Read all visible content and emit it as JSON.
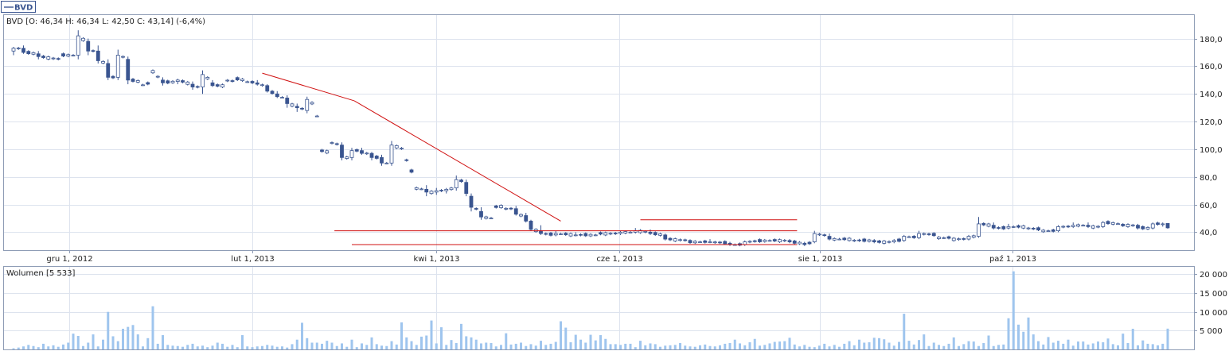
{
  "legend_tab": {
    "label": "BVD"
  },
  "colors": {
    "up_candle": "#ffffff",
    "down_candle": "#3a5590",
    "candle_edge": "#3a5590",
    "trend_line": "#d01010",
    "volume_bar": "#9fc5ee",
    "grid": "#dde3ee",
    "frame": "#8e9cb5",
    "text": "#222222"
  },
  "chart_data": [
    {
      "type": "candlestick",
      "info_label": "BVD [O: 46,34  H: 46,34  L: 42,50  C: 43,14] (-6,4%)",
      "x_tick_labels": [
        "gru 1, 2012",
        "lut 1, 2013",
        "kwi 1, 2013",
        "cze 1, 2013",
        "sie 1, 2013",
        "paź 1, 2013"
      ],
      "x_tick_positions": [
        10,
        37,
        64,
        91,
        118,
        145
      ],
      "y_ticks": [
        40,
        60,
        80,
        100,
        120,
        140,
        160,
        180
      ],
      "y_tick_labels": [
        "40,0",
        "60,0",
        "80,0",
        "100,0",
        "120,0",
        "140,0",
        "160,0",
        "180,0"
      ],
      "ylim": [
        27,
        197
      ],
      "x_range": [
        -0.5,
        169.5
      ],
      "grid": true,
      "ohlc_anchors": [
        [
          0,
          171,
          174,
          168,
          173
        ],
        [
          2,
          173,
          175,
          169,
          170
        ],
        [
          5,
          169,
          171,
          165,
          167
        ],
        [
          9,
          165,
          170,
          162,
          168
        ],
        [
          12,
          168,
          186,
          165,
          182
        ],
        [
          14,
          178,
          180,
          168,
          171
        ],
        [
          16,
          171,
          175,
          162,
          164
        ],
        [
          18,
          162,
          165,
          150,
          152
        ],
        [
          20,
          152,
          172,
          150,
          168
        ],
        [
          22,
          165,
          167,
          147,
          150
        ],
        [
          24,
          149,
          153,
          140,
          146
        ],
        [
          26,
          148,
          160,
          146,
          158
        ],
        [
          28,
          150,
          152,
          146,
          148
        ],
        [
          31,
          149,
          151,
          147,
          150
        ],
        [
          34,
          147,
          149,
          143,
          145
        ],
        [
          36,
          145,
          157,
          140,
          154
        ],
        [
          38,
          148,
          150,
          145,
          146
        ],
        [
          40,
          146,
          152,
          145,
          150
        ],
        [
          42,
          149,
          154,
          147,
          151
        ],
        [
          44,
          150,
          153,
          147,
          149
        ],
        [
          46,
          148,
          150,
          146,
          147
        ],
        [
          48,
          146,
          147,
          141,
          142
        ],
        [
          50,
          140,
          142,
          137,
          138
        ],
        [
          52,
          137,
          139,
          130,
          133
        ],
        [
          54,
          131,
          133,
          127,
          130
        ],
        [
          56,
          128,
          138,
          126,
          136
        ],
        [
          57,
          132,
          134,
          120,
          124
        ],
        [
          58,
          124,
          126,
          97,
          99
        ],
        [
          60,
          98,
          108,
          96,
          105
        ],
        [
          62,
          103,
          105,
          92,
          94
        ],
        [
          64,
          94,
          101,
          92,
          99
        ],
        [
          66,
          99,
          101,
          96,
          97
        ],
        [
          68,
          97,
          98,
          92,
          94
        ],
        [
          70,
          94,
          96,
          88,
          90
        ],
        [
          72,
          90,
          106,
          88,
          103
        ],
        [
          74,
          100,
          102,
          90,
          92
        ],
        [
          75,
          92,
          94,
          82,
          84
        ],
        [
          76,
          84,
          86,
          70,
          72
        ],
        [
          78,
          71,
          74,
          66,
          69
        ],
        [
          80,
          69,
          72,
          67,
          70
        ],
        [
          82,
          70,
          72,
          68,
          71
        ],
        [
          84,
          72,
          81,
          70,
          78
        ],
        [
          86,
          76,
          78,
          66,
          68
        ],
        [
          87,
          66,
          68,
          55,
          58
        ],
        [
          89,
          55,
          58,
          49,
          51
        ],
        [
          91,
          50,
          60,
          49,
          58
        ],
        [
          93,
          59,
          60,
          56,
          57
        ],
        [
          95,
          57,
          59,
          52,
          53
        ],
        [
          97,
          52,
          54,
          47,
          48
        ],
        [
          98,
          48,
          49,
          41,
          42
        ],
        [
          100,
          41,
          45,
          38,
          39
        ],
        [
          103,
          38,
          41,
          37,
          39
        ],
        [
          107,
          38,
          40,
          37,
          38
        ],
        [
          111,
          38,
          40,
          37,
          39
        ],
        [
          115,
          39,
          41,
          38,
          40
        ],
        [
          118,
          40,
          43,
          39,
          41
        ],
        [
          121,
          40,
          42,
          38,
          39
        ],
        [
          124,
          38,
          39,
          34,
          35
        ],
        [
          128,
          34,
          36,
          32,
          33
        ],
        [
          132,
          33,
          35,
          32,
          33
        ],
        [
          136,
          32,
          33,
          30,
          31
        ],
        [
          139,
          31,
          34,
          30,
          33
        ],
        [
          143,
          34,
          36,
          33,
          34
        ],
        [
          147,
          34,
          35,
          32,
          33
        ],
        [
          150,
          32,
          33,
          30,
          31
        ],
        [
          152,
          33,
          41,
          32,
          39
        ],
        [
          155,
          37,
          39,
          34,
          35
        ],
        [
          159,
          35,
          36,
          33,
          34
        ],
        [
          163,
          34,
          35,
          32,
          33
        ],
        [
          167,
          33,
          35,
          32,
          34
        ],
        [
          169,
          34,
          38,
          33,
          37
        ],
        [
          172,
          36,
          41,
          35,
          39
        ],
        [
          175,
          38,
          39,
          35,
          36
        ],
        [
          178,
          36,
          37,
          34,
          35
        ],
        [
          181,
          35,
          38,
          34,
          37
        ],
        [
          183,
          37,
          51,
          36,
          46
        ],
        [
          186,
          45,
          47,
          42,
          43
        ],
        [
          189,
          43,
          46,
          42,
          44
        ],
        [
          192,
          44,
          47,
          42,
          43
        ],
        [
          195,
          42,
          43,
          40,
          41
        ],
        [
          198,
          41,
          45,
          40,
          44
        ],
        [
          201,
          44,
          47,
          43,
          45
        ],
        [
          204,
          45,
          47,
          43,
          44
        ],
        [
          207,
          44,
          48,
          43,
          47
        ],
        [
          210,
          46,
          47,
          44,
          45
        ],
        [
          213,
          45,
          46,
          42,
          43
        ],
        [
          216,
          43,
          47,
          42,
          46
        ],
        [
          218,
          46,
          47,
          44,
          46
        ],
        [
          219,
          46.34,
          46.34,
          42.5,
          43.14
        ]
      ],
      "anchor_x_scale": 0.77,
      "trend_lines": [
        {
          "x1": 100,
          "y1": 155,
          "x2": 137,
          "y2": 135
        },
        {
          "x1": 137,
          "y1": 135,
          "x2": 220,
          "y2": 48
        },
        {
          "x1": 129,
          "y1": 41,
          "x2": 315,
          "y2": 41
        },
        {
          "x1": 136,
          "y1": 31,
          "x2": 315,
          "y2": 31
        },
        {
          "x1": 252,
          "y1": 49,
          "x2": 315,
          "y2": 49
        }
      ],
      "trend_x_scale": 0.5
    },
    {
      "type": "bar",
      "info_label": "Wolumen [5 533]",
      "y_ticks": [
        5000,
        10000,
        15000,
        20000
      ],
      "y_tick_labels": [
        "5 000",
        "10 000",
        "15 000",
        "20 000"
      ],
      "ylim": [
        0,
        22000
      ],
      "volumes": [
        300,
        500,
        800,
        1200,
        900,
        600,
        1500,
        800,
        1100,
        700,
        1300,
        1800,
        4200,
        3600,
        900,
        1800,
        4000,
        800,
        2600,
        10000,
        3500,
        2200,
        5500,
        6000,
        6500,
        4000,
        800,
        3000,
        11500,
        1500,
        3800,
        1200,
        1000,
        900,
        700,
        1200,
        1500,
        800,
        1000,
        600,
        1000,
        1800,
        1500,
        700,
        1200,
        600,
        3800,
        800,
        600,
        800,
        900,
        1200,
        1000,
        700,
        800,
        500,
        1400,
        2600,
        7100,
        3000,
        1800,
        1800,
        1500,
        2300,
        1800,
        900,
        1600,
        700,
        2600,
        600,
        1600,
        1200,
        3200,
        1400,
        1000,
        900,
        2200,
        1300,
        7200,
        3200,
        2200,
        1200,
        3400,
        3700,
        7700,
        1600,
        5900,
        1200,
        2500,
        1700,
        6800,
        3500,
        3200,
        2600,
        1600,
        1800,
        1700,
        800,
        1200,
        4300,
        1300,
        1500,
        1800,
        900,
        1400,
        1000,
        2300,
        1200,
        1500,
        2000,
        7500,
        5800,
        1900,
        3900,
        2600,
        1800,
        3900,
        2400,
        3800,
        2800,
        1400,
        1400,
        1200,
        1500,
        1500,
        600,
        2300,
        1100,
        1600,
        1400,
        700,
        1000,
        1100,
        1200,
        1700,
        1000,
        800,
        700,
        1100,
        1300,
        900,
        800,
        1100,
        1500,
        1700,
        2600,
        1600,
        1100,
        1900,
        2800,
        1000,
        1200,
        1600,
        2000,
        2100,
        2200,
        3100,
        1300,
        800,
        1200,
        700,
        600,
        1000,
        1500,
        800,
        1200,
        700,
        1500,
        2200,
        1100,
        2600,
        1800,
        1900,
        3100,
        3000,
        2700,
        1800,
        1000,
        2000,
        9500,
        2300,
        1300,
        2500,
        4000,
        900,
        1800,
        1200,
        900,
        1500,
        3200,
        900,
        1400,
        2200,
        2100,
        900,
        1700,
        3700,
        900,
        1200,
        1300,
        8300,
        20800,
        6600,
        4700,
        8500,
        4000,
        2200,
        1300,
        3300,
        1800,
        2300,
        1500,
        2600,
        1000,
        2100,
        2100,
        1300,
        1600,
        2100,
        1900,
        2900,
        1400,
        1100,
        4200,
        1700,
        5500,
        1100,
        2400,
        1500,
        1400,
        1100,
        1500,
        5533
      ]
    }
  ]
}
